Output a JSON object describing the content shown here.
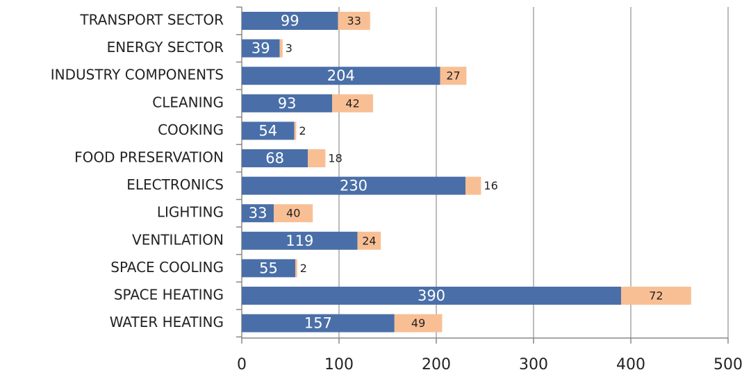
{
  "chart_data": {
    "type": "stacked_bar_horizontal",
    "categories": [
      "TRANSPORT SECTOR",
      "ENERGY SECTOR",
      "INDUSTRY COMPONENTS",
      "CLEANING",
      "COOKING",
      "FOOD PRESERVATION",
      "ELECTRONICS",
      "LIGHTING",
      "VENTILATION",
      "SPACE COOLING",
      "SPACE HEATING",
      "WATER HEATING"
    ],
    "series": [
      {
        "color": "#4a6fa8",
        "values": [
          99,
          39,
          204,
          93,
          54,
          68,
          230,
          33,
          119,
          55,
          390,
          157
        ]
      },
      {
        "color": "#f9bf94",
        "values": [
          33,
          3,
          27,
          42,
          2,
          18,
          16,
          40,
          24,
          2,
          72,
          49
        ]
      }
    ],
    "xlim": [
      0,
      500
    ],
    "xticks": [
      0,
      100,
      200,
      300,
      400,
      500
    ],
    "grid": true
  }
}
